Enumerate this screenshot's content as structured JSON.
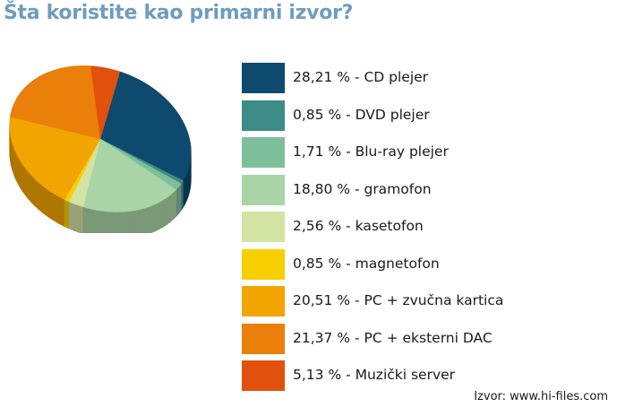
{
  "chart_data": {
    "type": "pie",
    "title": "Šta koristite kao primarni izvor?",
    "source": "Izvor: www.hi-files.com",
    "slices": [
      {
        "value": 28.21,
        "label": "28,21 % - CD plejer",
        "color": "#0d4a6e"
      },
      {
        "value": 0.85,
        "label": "0,85 % - DVD plejer",
        "color": "#3d8b86"
      },
      {
        "value": 1.71,
        "label": "1,71 % - Blu-ray plejer",
        "color": "#7dbf9b"
      },
      {
        "value": 18.8,
        "label": "18,80 % - gramofon",
        "color": "#a9d4a5"
      },
      {
        "value": 2.56,
        "label": "2,56 % - kasetofon",
        "color": "#d3e3a3"
      },
      {
        "value": 0.85,
        "label": "0,85 % - magnetofon",
        "color": "#f7cf00"
      },
      {
        "value": 20.51,
        "label": "20,51 % - PC + zvučna kartica",
        "color": "#f2a500"
      },
      {
        "value": 21.37,
        "label": "21,37 % - PC + eksterni DAC",
        "color": "#ea7f0a"
      },
      {
        "value": 5.13,
        "label": "5,13 % - Muzički server",
        "color": "#e2500d"
      }
    ]
  }
}
